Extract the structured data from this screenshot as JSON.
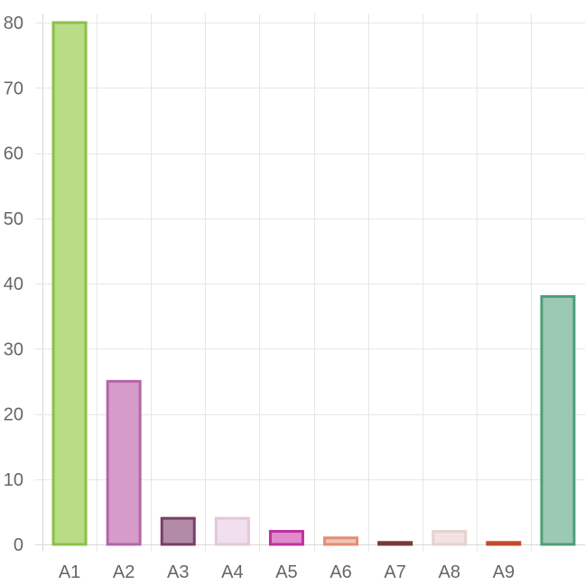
{
  "chart_data": {
    "type": "bar",
    "categories": [
      "A1",
      "A2",
      "A3",
      "A4",
      "A5",
      "A6",
      "A7",
      "A8",
      "A9",
      ""
    ],
    "values": [
      80,
      25,
      4,
      4,
      2,
      1,
      0.3,
      2,
      0.3,
      38
    ],
    "ylim": [
      0,
      80
    ],
    "yticks": [
      0,
      10,
      20,
      30,
      40,
      50,
      60,
      70,
      80
    ],
    "grid": true,
    "legend": "none",
    "colors": {
      "fill": [
        "#b9dc86",
        "#d59bc9",
        "#b28ca6",
        "#f0dfec",
        "#df8ccc",
        "#f2c4b4",
        "#8a4a46",
        "#f2e2e0",
        "#dc7e64",
        "#9bc9b3"
      ],
      "stroke": [
        "#8cc04a",
        "#b566a8",
        "#7a3d68",
        "#e2c8da",
        "#c02fa0",
        "#e58d74",
        "#7a3834",
        "#e6d2d0",
        "#c44a2c",
        "#4d9e78"
      ]
    }
  }
}
